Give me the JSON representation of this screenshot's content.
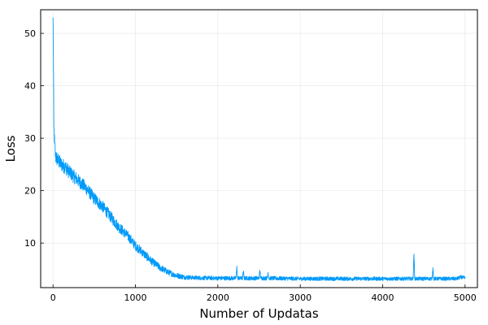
{
  "chart_data": {
    "type": "line",
    "title": "",
    "xlabel": "Number of Updatas",
    "ylabel": "Loss",
    "xlim": [
      -150,
      5150
    ],
    "ylim": [
      1.5,
      54.5
    ],
    "grid": true,
    "legend": "none",
    "x_ticks": [
      0,
      1000,
      2000,
      3000,
      4000,
      5000
    ],
    "x_tick_labels": [
      "0",
      "1000",
      "2000",
      "3000",
      "4000",
      "5000"
    ],
    "y_ticks": [
      10,
      20,
      30,
      40,
      50
    ],
    "y_tick_labels": [
      "10",
      "20",
      "30",
      "40",
      "50"
    ],
    "series": [
      {
        "color": "#009af9",
        "points": [
          [
            0,
            53.0
          ],
          [
            5,
            45.0
          ],
          [
            10,
            32.0
          ],
          [
            20,
            29.0
          ],
          [
            30,
            26.5
          ],
          [
            50,
            26.0
          ],
          [
            100,
            25.0
          ],
          [
            150,
            24.5
          ],
          [
            200,
            23.5
          ],
          [
            300,
            22.0
          ],
          [
            400,
            20.5
          ],
          [
            500,
            18.5
          ],
          [
            600,
            17.0
          ],
          [
            700,
            15.0
          ],
          [
            800,
            13.0
          ],
          [
            900,
            11.5
          ],
          [
            1000,
            9.5
          ],
          [
            1100,
            8.0
          ],
          [
            1200,
            6.5
          ],
          [
            1300,
            5.3
          ],
          [
            1400,
            4.4
          ],
          [
            1500,
            3.8
          ],
          [
            1600,
            3.5
          ],
          [
            1700,
            3.4
          ],
          [
            1800,
            3.35
          ],
          [
            2000,
            3.3
          ],
          [
            2220,
            3.3
          ],
          [
            2230,
            5.6
          ],
          [
            2240,
            3.3
          ],
          [
            2300,
            3.3
          ],
          [
            2310,
            4.6
          ],
          [
            2320,
            3.3
          ],
          [
            2500,
            3.3
          ],
          [
            2510,
            4.8
          ],
          [
            2520,
            3.3
          ],
          [
            2600,
            3.3
          ],
          [
            2610,
            4.4
          ],
          [
            2620,
            3.3
          ],
          [
            3000,
            3.2
          ],
          [
            3500,
            3.2
          ],
          [
            4000,
            3.2
          ],
          [
            4370,
            3.2
          ],
          [
            4380,
            7.9
          ],
          [
            4390,
            3.2
          ],
          [
            4600,
            3.2
          ],
          [
            4610,
            5.3
          ],
          [
            4620,
            3.2
          ],
          [
            4900,
            3.2
          ],
          [
            4950,
            3.5
          ],
          [
            5000,
            3.3
          ]
        ],
        "noise": [
          [
            0,
            1.5
          ],
          [
            100,
            1.4
          ],
          [
            500,
            1.2
          ],
          [
            1000,
            0.9
          ],
          [
            1400,
            0.6
          ],
          [
            1700,
            0.4
          ],
          [
            2000,
            0.4
          ],
          [
            5000,
            0.35
          ]
        ]
      }
    ]
  }
}
